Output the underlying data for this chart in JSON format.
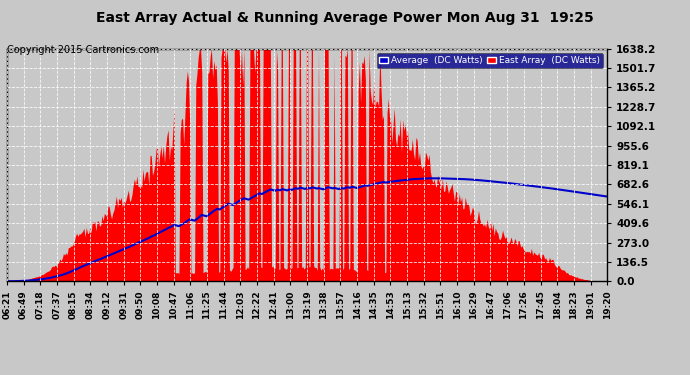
{
  "title": "East Array Actual & Running Average Power Mon Aug 31  19:25",
  "copyright": "Copyright 2015 Cartronics.com",
  "legend_labels": [
    "Average  (DC Watts)",
    "East Array  (DC Watts)"
  ],
  "legend_colors": [
    "#0000cc",
    "#ff0000"
  ],
  "yticks": [
    0.0,
    136.5,
    273.0,
    409.6,
    546.1,
    682.6,
    819.1,
    955.6,
    1092.1,
    1228.7,
    1365.2,
    1501.7,
    1638.2
  ],
  "ymax": 1638.2,
  "ymin": 0.0,
  "bg_color": "#c8c8c8",
  "plot_bg_color": "#c8c8c8",
  "grid_color": "#aaaaaa",
  "fill_color": "#ff0000",
  "avg_line_color": "#0000cc",
  "xtick_labels": [
    "06:21",
    "06:49",
    "07:18",
    "07:37",
    "08:15",
    "08:34",
    "09:12",
    "09:31",
    "09:50",
    "10:08",
    "10:47",
    "11:06",
    "11:25",
    "11:44",
    "12:03",
    "12:22",
    "12:41",
    "13:00",
    "13:19",
    "13:38",
    "13:57",
    "14:16",
    "14:35",
    "14:53",
    "15:13",
    "15:32",
    "15:51",
    "16:10",
    "16:29",
    "16:47",
    "17:06",
    "17:26",
    "17:45",
    "18:04",
    "18:23",
    "19:01",
    "19:20"
  ],
  "n_points": 500
}
